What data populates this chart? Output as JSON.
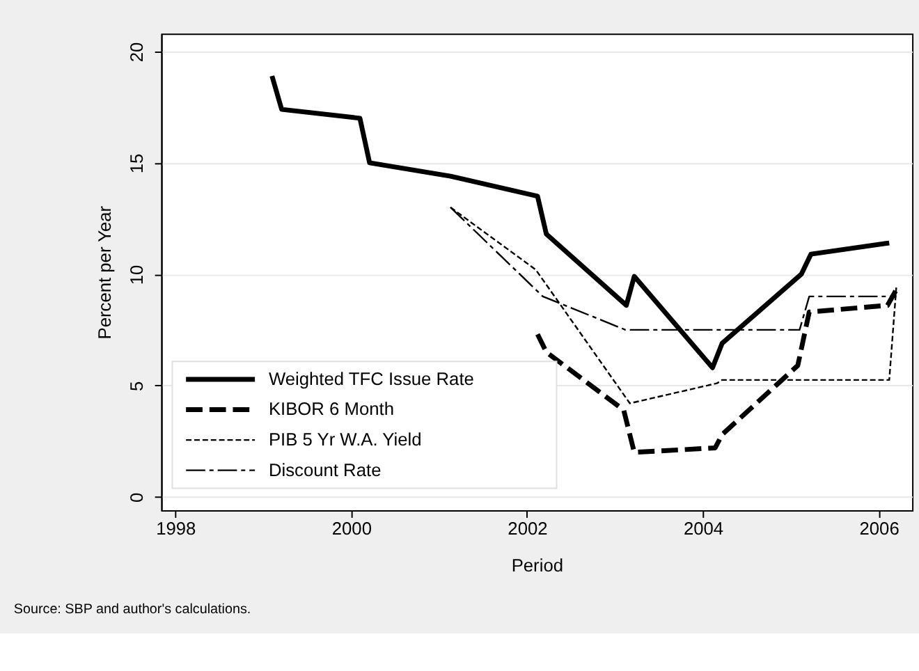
{
  "chart_data": {
    "type": "line",
    "xlabel": "Period",
    "ylabel": "Percent per Year",
    "xlim": [
      1997.84,
      2006.38
    ],
    "xticks": [
      1998,
      2000,
      2002,
      2004,
      2006
    ],
    "ylim": [
      -0.6,
      20.8
    ],
    "yticks": [
      0,
      5,
      10,
      15,
      20
    ],
    "grid": "y",
    "legend": "bottom left",
    "marker": "none",
    "annotations": [
      "Source: SBP and author's calculations."
    ],
    "series": [
      {
        "name": "Weighted TFC Issue Rate",
        "color": "#000000",
        "line_style": "solid",
        "x": [
          1999.1,
          1999.21,
          2000.1,
          2000.21,
          2001.13,
          2002.12,
          2002.22,
          2003.13,
          2003.22,
          2004.11,
          2004.22,
          2005.12,
          2005.23,
          2006.12
        ],
        "values": [
          18.9,
          17.4,
          17.0,
          15.0,
          14.4,
          13.5,
          11.8,
          8.6,
          9.9,
          5.8,
          6.9,
          10.0,
          10.9,
          11.4
        ]
      },
      {
        "name": "KIBOR 6 Month",
        "color": "#000000",
        "line_style": "dashed",
        "x": [
          2002.12,
          2002.22,
          2003.1,
          2003.22,
          2004.14,
          2004.22,
          2005.08,
          2005.21,
          2006.1,
          2006.2
        ],
        "values": [
          7.3,
          6.5,
          3.9,
          2.0,
          2.2,
          2.8,
          5.9,
          8.3,
          8.6,
          9.3
        ]
      },
      {
        "name": "PIB 5 Yr W.A. Yield",
        "color": "#000000",
        "line_style": "dotted",
        "x": [
          2001.13,
          2002.1,
          2003.17,
          2004.16,
          2004.22,
          2006.12,
          2006.2
        ],
        "values": [
          13.0,
          10.2,
          4.2,
          5.1,
          5.25,
          5.25,
          9.4
        ]
      },
      {
        "name": "Discount Rate",
        "color": "#000000",
        "line_style": "dashed",
        "x": [
          2001.13,
          2002.18,
          2003.12,
          2005.1,
          2005.21,
          2006.2
        ],
        "values": [
          13.0,
          9.0,
          7.5,
          7.5,
          9.0,
          9.0
        ]
      }
    ]
  }
}
